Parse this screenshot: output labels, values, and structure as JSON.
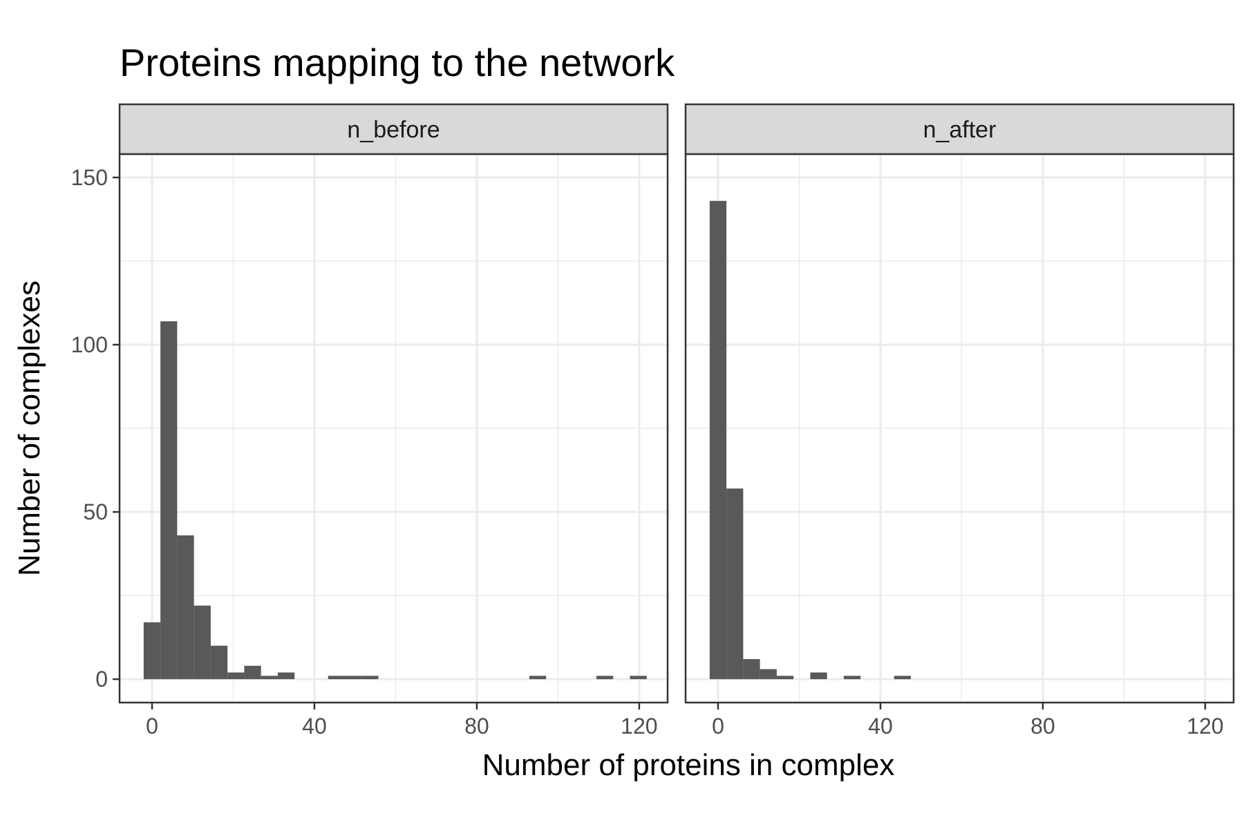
{
  "chart_data": {
    "type": "bar",
    "title": "Proteins mapping to the network",
    "xlabel": "Number of proteins in complex",
    "ylabel": "Number of complexes",
    "xlim": [
      -8,
      127
    ],
    "ylim": [
      -7,
      157
    ],
    "x_ticks": [
      0,
      40,
      80,
      120
    ],
    "y_ticks": [
      0,
      50,
      100,
      150
    ],
    "grid": true,
    "bin_width": 4.13,
    "panels": [
      {
        "name": "n_before",
        "bin_centers": [
          0,
          4.13,
          8.26,
          12.39,
          16.52,
          20.65,
          24.78,
          28.91,
          33.04,
          45.43,
          49.56,
          53.69,
          95.0,
          111.52,
          119.78
        ],
        "values": [
          17,
          107,
          43,
          22,
          10,
          2,
          4,
          1,
          2,
          1,
          1,
          1,
          1,
          1,
          1
        ]
      },
      {
        "name": "n_after",
        "bin_centers": [
          0,
          4.13,
          8.26,
          12.39,
          16.52,
          24.78,
          33.04,
          45.43
        ],
        "values": [
          143,
          57,
          6,
          3,
          1,
          2,
          1,
          1
        ]
      }
    ]
  }
}
